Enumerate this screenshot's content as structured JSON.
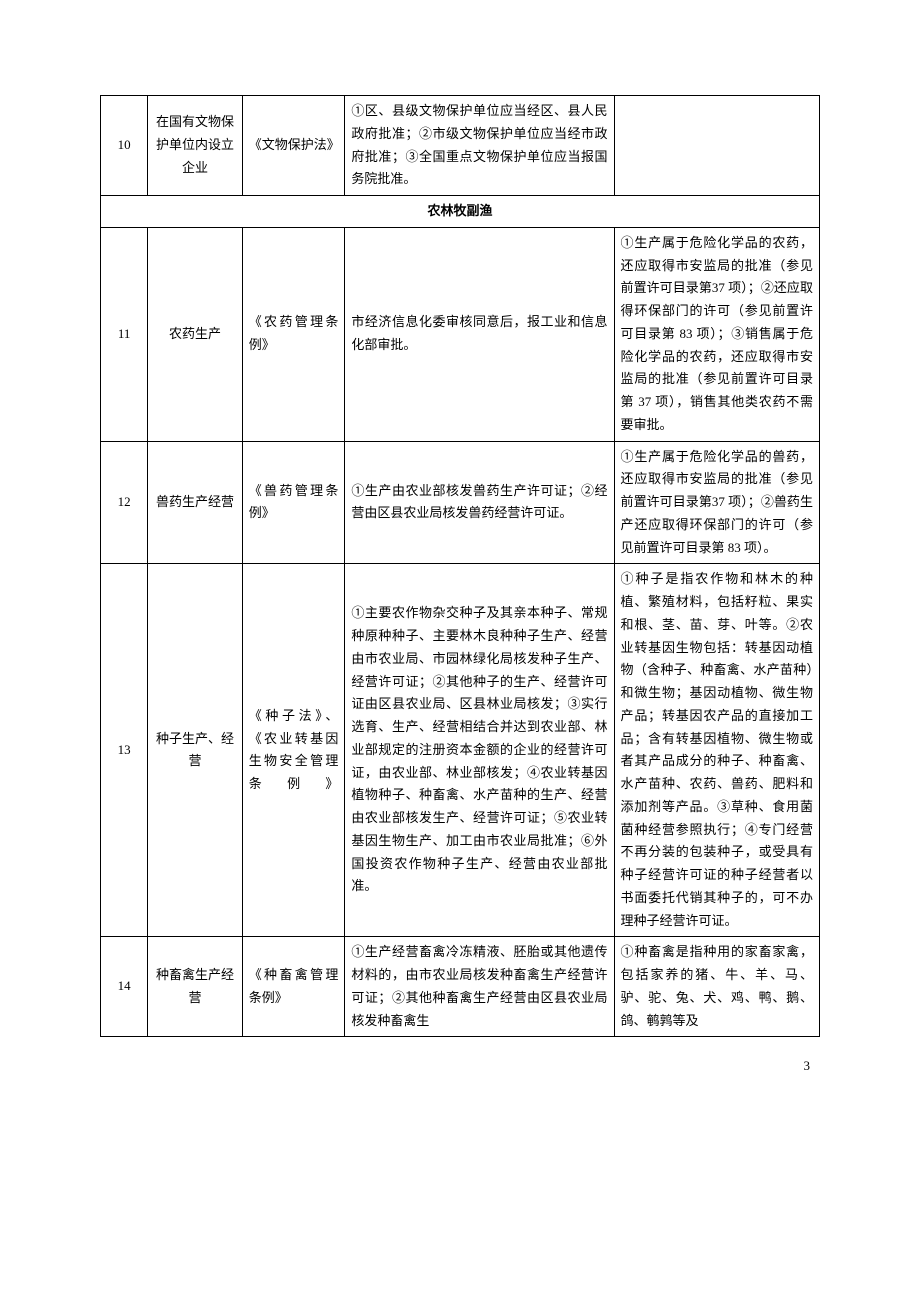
{
  "page": {
    "number": "3",
    "font_family": "SimSun",
    "font_size_body": 13,
    "border_color": "#000000",
    "background_color": "#ffffff",
    "text_color": "#000000"
  },
  "section_header": "农林牧副渔",
  "columns": {
    "num_width": 46,
    "name_width": 92,
    "law_width": 100,
    "desc_width": 262,
    "note_width": 200
  },
  "rows": [
    {
      "num": "10",
      "name": "在国有文物保护单位内设立企业",
      "law": "《文物保护法》",
      "desc": "①区、县级文物保护单位应当经区、县人民政府批准；②市级文物保护单位应当经市政府批准；③全国重点文物保护单位应当报国务院批准。",
      "note": ""
    },
    {
      "num": "11",
      "name": "农药生产",
      "law": "《农药管理条例》",
      "desc": "市经济信息化委审核同意后，报工业和信息化部审批。",
      "note": "①生产属于危险化学品的农药，还应取得市安监局的批准（参见前置许可目录第37 项）；②还应取得环保部门的许可（参见前置许可目录第 83 项）；③销售属于危险化学品的农药，还应取得市安监局的批准（参见前置许可目录第 37 项），销售其他类农药不需要审批。"
    },
    {
      "num": "12",
      "name": "兽药生产经营",
      "law": "《兽药管理条例》",
      "desc": "①生产由农业部核发兽药生产许可证；②经营由区县农业局核发兽药经营许可证。",
      "note": "①生产属于危险化学品的兽药，还应取得市安监局的批准（参见前置许可目录第37 项）；②兽药生产还应取得环保部门的许可（参见前置许可目录第 83 项）。"
    },
    {
      "num": "13",
      "name": "种子生产、经营",
      "law": "《种子法》、《农业转基因生物安全管理条例》",
      "desc": "①主要农作物杂交种子及其亲本种子、常规种原种种子、主要林木良种种子生产、经营由市农业局、市园林绿化局核发种子生产、经营许可证；②其他种子的生产、经营许可证由区县农业局、区县林业局核发；③实行选育、生产、经营相结合并达到农业部、林业部规定的注册资本金额的企业的经营许可证，由农业部、林业部核发；④农业转基因植物种子、种畜禽、水产苗种的生产、经营由农业部核发生产、经营许可证；⑤农业转基因生物生产、加工由市农业局批准；⑥外国投资农作物种子生产、经营由农业部批准。",
      "note": "①种子是指农作物和林木的种植、繁殖材料，包括籽粒、果实和根、茎、苗、芽、叶等。②农业转基因生物包括：转基因动植物（含种子、种畜禽、水产苗种）和微生物；基因动植物、微生物产品；转基因农产品的直接加工品；含有转基因植物、微生物或者其产品成分的种子、种畜禽、水产苗种、农药、兽药、肥料和添加剂等产品。③草种、食用菌菌种经营参照执行；④专门经营不再分装的包装种子，或受具有种子经营许可证的种子经营者以书面委托代销其种子的，可不办理种子经营许可证。"
    },
    {
      "num": "14",
      "name": "种畜禽生产经营",
      "law": "《种畜禽管理条例》",
      "desc": "①生产经营畜禽冷冻精液、胚胎或其他遗传材料的，由市农业局核发种畜禽生产经营许可证；②其他种畜禽生产经营由区县农业局核发种畜禽生",
      "note": "①种畜禽是指种用的家畜家禽，包括家养的猪、牛、羊、马、驴、驼、兔、犬、鸡、鸭、鹅、鸽、鹌鹑等及"
    }
  ]
}
